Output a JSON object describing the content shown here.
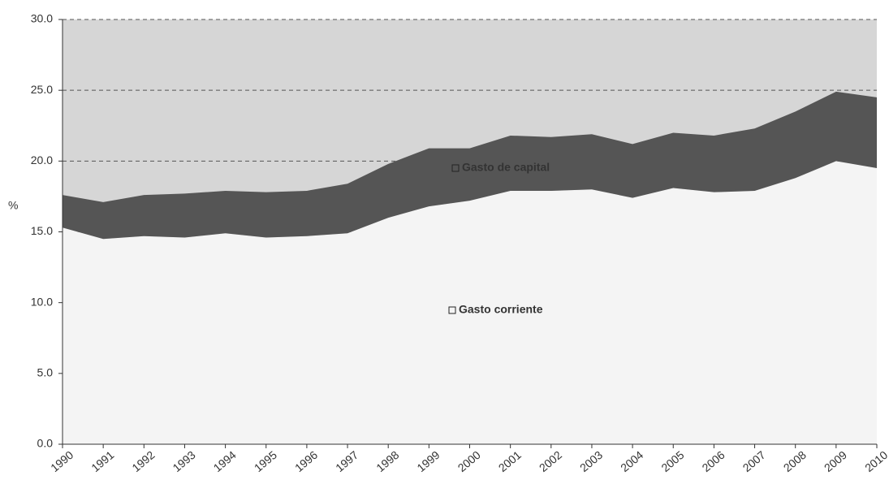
{
  "chart_data": {
    "type": "stacked_area",
    "y_label": "%",
    "categories": [
      "1990",
      "1991",
      "1992",
      "1993",
      "1994",
      "1995",
      "1996",
      "1997",
      "1998",
      "1999",
      "2000",
      "2001",
      "2002",
      "2003",
      "2004",
      "2005",
      "2006",
      "2007",
      "2008",
      "2009",
      "2010"
    ],
    "series": [
      {
        "name": "Gasto corriente",
        "color": "#f4f4f4",
        "values": [
          15.3,
          14.5,
          14.7,
          14.6,
          14.9,
          14.6,
          14.7,
          14.9,
          16.0,
          16.8,
          17.2,
          17.9,
          17.9,
          18.0,
          17.4,
          18.1,
          17.8,
          17.9,
          18.8,
          20.0,
          19.5
        ]
      },
      {
        "name": "Gasto de capital",
        "color": "#555555",
        "values": [
          2.3,
          2.6,
          2.9,
          3.1,
          3.0,
          3.2,
          3.2,
          3.5,
          3.8,
          4.1,
          3.7,
          3.9,
          3.8,
          3.9,
          3.8,
          3.9,
          4.0,
          4.4,
          4.7,
          4.9,
          5.0
        ]
      }
    ],
    "ylim": [
      0,
      30
    ],
    "yticks": [
      {
        "value": 0,
        "label": "0.0"
      },
      {
        "value": 5,
        "label": "5.0"
      },
      {
        "value": 10,
        "label": "10.0"
      },
      {
        "value": 15,
        "label": "15.0"
      },
      {
        "value": 20,
        "label": "20.0"
      },
      {
        "value": 25,
        "label": "25.0"
      },
      {
        "value": 30,
        "label": "30.0"
      }
    ],
    "grid": true,
    "plot_background": "#d6d6d6"
  }
}
